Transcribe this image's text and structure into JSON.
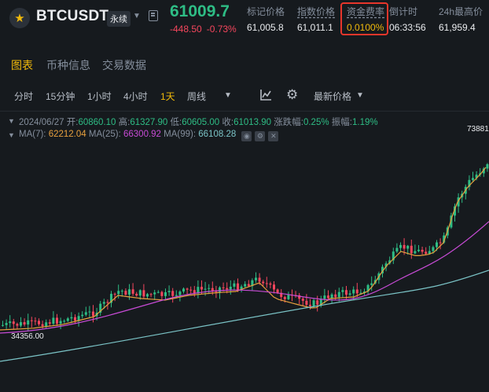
{
  "header": {
    "symbol": "BTCUSDT",
    "contract_type": "永续",
    "last_price": "61009.7",
    "change_abs": "-448.50",
    "change_pct": "-0.73%",
    "stats": [
      {
        "label": "标记价格",
        "value": "61,005.8"
      },
      {
        "label": "指数价格",
        "value": "61,011.1"
      },
      {
        "label": "资金费率",
        "value": "0.0100%"
      },
      {
        "label": "倒计时",
        "value": "06:33:56"
      },
      {
        "label": "24h最高价",
        "value": "61,959.4"
      }
    ]
  },
  "tabs": [
    "图表",
    "币种信息",
    "交易数据"
  ],
  "toolbar": {
    "intervals": [
      "分时",
      "15分钟",
      "1小时",
      "4小时",
      "1天",
      "周线"
    ],
    "active_interval": "1天",
    "price_type": "最新价格"
  },
  "ohlc": {
    "date": "2024/06/27",
    "open_label": "开:",
    "open": "60860.10",
    "high_label": "高:",
    "high": "61327.90",
    "low_label": "低:",
    "low": "60605.00",
    "close_label": "收:",
    "close": "61013.90",
    "chg_label": "涨跌幅:",
    "chg": "0.25%",
    "amp_label": "振幅:",
    "amp": "1.19%"
  },
  "ma": {
    "ma7_label": "MA(7):",
    "ma7": "62212.04",
    "ma25_label": "MA(25):",
    "ma25": "66300.92",
    "ma99_label": "MA(99):",
    "ma99": "66108.28"
  },
  "chart_data": {
    "type": "line",
    "high_label": "73881.",
    "low_label": "34356.00",
    "colors": {
      "up": "#2ebd85",
      "down": "#f6465d",
      "ma7": "#e8a03e",
      "ma25": "#c84bd6",
      "ma99": "#7bc4c7"
    }
  }
}
